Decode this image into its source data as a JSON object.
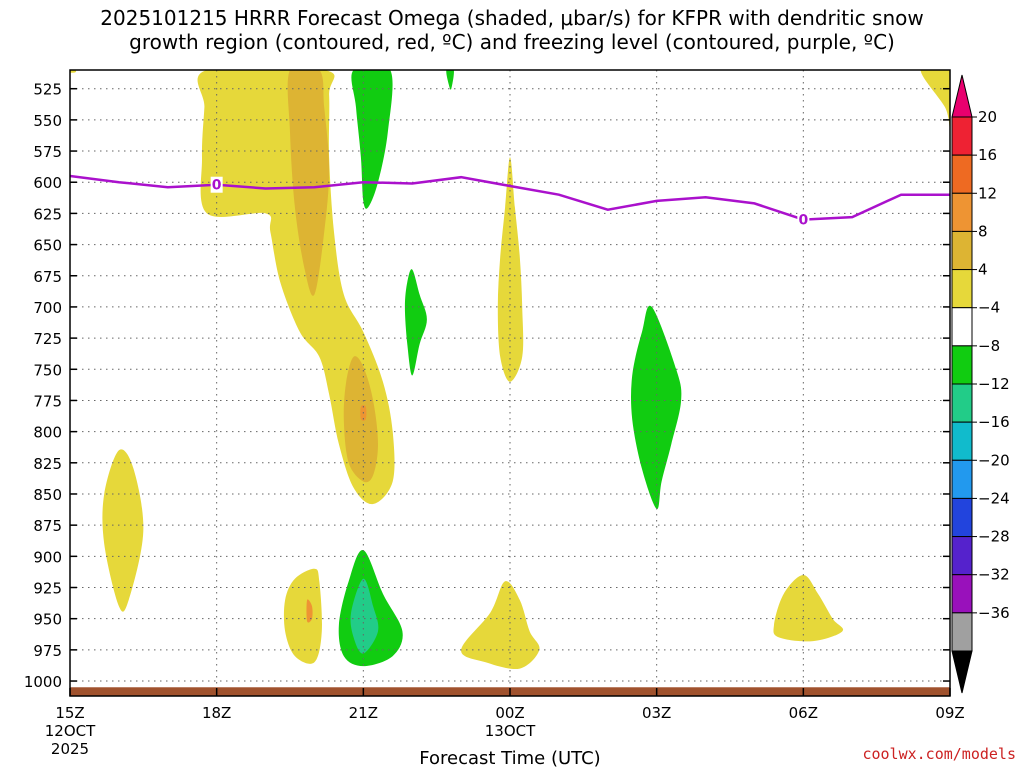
{
  "title": {
    "line1": "2025101215 HRRR Forecast Omega (shaded, μbar/s) for KFPR with dendritic snow",
    "line2": "growth region (contoured, red, ºC) and freezing level (contoured, purple, ºC)"
  },
  "chart_data": {
    "type": "time-height cross section",
    "xlabel": "Forecast Time (UTC)",
    "credit": "coolwx.com/models",
    "x_ticks": [
      {
        "hour": 0,
        "label": "15Z",
        "sub1": "12OCT",
        "sub2": "2025"
      },
      {
        "hour": 3,
        "label": "18Z",
        "sub1": "",
        "sub2": ""
      },
      {
        "hour": 6,
        "label": "21Z",
        "sub1": "",
        "sub2": ""
      },
      {
        "hour": 9,
        "label": "00Z",
        "sub1": "13OCT",
        "sub2": ""
      },
      {
        "hour": 12,
        "label": "03Z",
        "sub1": "",
        "sub2": ""
      },
      {
        "hour": 15,
        "label": "06Z",
        "sub1": "",
        "sub2": ""
      },
      {
        "hour": 18,
        "label": "09Z",
        "sub1": "",
        "sub2": ""
      }
    ],
    "xlim_hours": [
      0,
      18
    ],
    "ylim_mb": [
      1012,
      510
    ],
    "y_ticks": [
      525,
      550,
      575,
      600,
      625,
      650,
      675,
      700,
      725,
      750,
      775,
      800,
      825,
      850,
      875,
      900,
      925,
      950,
      975,
      1000
    ],
    "surface_pressure_mb": 1005,
    "surface_color": "#a0522d",
    "colorbar": {
      "labels": [
        "20",
        "16",
        "12",
        "8",
        "4",
        "−4",
        "−8",
        "−12",
        "−16",
        "−20",
        "−24",
        "−28",
        "−32",
        "−36"
      ],
      "top_arrow_color": "#e8006e",
      "bottom_arrow_color": "#000000",
      "bins": [
        {
          "color": "#ee2233"
        },
        {
          "color": "#ee6a22"
        },
        {
          "color": "#ee9433"
        },
        {
          "color": "#ddb433"
        },
        {
          "color": "#e6d83a"
        },
        {
          "color": "#ffffff"
        },
        {
          "color": "#11cc11"
        },
        {
          "color": "#22cc88"
        },
        {
          "color": "#11bbcc"
        },
        {
          "color": "#2299ee"
        },
        {
          "color": "#2244dd"
        },
        {
          "color": "#5522cc"
        },
        {
          "color": "#9911bb"
        },
        {
          "color": "#a0a0a0"
        }
      ]
    },
    "shaded_regions": [
      {
        "fill": "#e6d83a",
        "points": [
          [
            -0.1,
            510
          ],
          [
            0.1,
            510
          ],
          [
            0.1,
            512
          ],
          [
            -0.1,
            512
          ]
        ]
      },
      {
        "fill": "#e6d83a",
        "points": [
          [
            2.8,
            510
          ],
          [
            5.2,
            510
          ],
          [
            5.3,
            530
          ],
          [
            5.3,
            580
          ],
          [
            5.4,
            640
          ],
          [
            5.6,
            690
          ],
          [
            6.0,
            720
          ],
          [
            6.4,
            760
          ],
          [
            6.6,
            800
          ],
          [
            6.6,
            840
          ],
          [
            6.2,
            858
          ],
          [
            5.8,
            845
          ],
          [
            5.5,
            810
          ],
          [
            5.3,
            770
          ],
          [
            5.1,
            740
          ],
          [
            4.7,
            720
          ],
          [
            4.3,
            680
          ],
          [
            4.1,
            640
          ],
          [
            4.0,
            625
          ],
          [
            2.8,
            625
          ],
          [
            2.7,
            580
          ],
          [
            2.75,
            540
          ]
        ]
      },
      {
        "fill": "#ddb433",
        "points": [
          [
            4.5,
            510
          ],
          [
            5.1,
            510
          ],
          [
            5.2,
            540
          ],
          [
            5.3,
            590
          ],
          [
            5.2,
            640
          ],
          [
            5.0,
            690
          ],
          [
            4.8,
            670
          ],
          [
            4.6,
            620
          ],
          [
            4.5,
            560
          ]
        ]
      },
      {
        "fill": "#ddb433",
        "points": [
          [
            5.8,
            740
          ],
          [
            6.0,
            748
          ],
          [
            6.2,
            775
          ],
          [
            6.3,
            810
          ],
          [
            6.2,
            835
          ],
          [
            6.0,
            840
          ],
          [
            5.7,
            825
          ],
          [
            5.6,
            790
          ],
          [
            5.65,
            760
          ]
        ]
      },
      {
        "fill": "#ee9433",
        "points": [
          [
            5.95,
            780
          ],
          [
            6.05,
            780
          ],
          [
            6.05,
            790
          ],
          [
            5.95,
            790
          ]
        ]
      },
      {
        "fill": "#e6d83a",
        "points": [
          [
            1.0,
            815
          ],
          [
            1.3,
            830
          ],
          [
            1.5,
            880
          ],
          [
            1.2,
            935
          ],
          [
            1.0,
            940
          ],
          [
            0.7,
            890
          ],
          [
            0.7,
            850
          ]
        ]
      },
      {
        "fill": "#e6d83a",
        "points": [
          [
            5.0,
            910
          ],
          [
            5.1,
            920
          ],
          [
            5.15,
            960
          ],
          [
            5.0,
            985
          ],
          [
            4.6,
            980
          ],
          [
            4.4,
            960
          ],
          [
            4.4,
            935
          ],
          [
            4.6,
            918
          ]
        ]
      },
      {
        "fill": "#ee9433",
        "points": [
          [
            4.85,
            935
          ],
          [
            4.95,
            940
          ],
          [
            4.95,
            950
          ],
          [
            4.85,
            952
          ]
        ]
      },
      {
        "fill": "#e6d83a",
        "points": [
          [
            9.0,
            580
          ],
          [
            9.1,
            620
          ],
          [
            9.2,
            660
          ],
          [
            9.25,
            700
          ],
          [
            9.25,
            740
          ],
          [
            9.0,
            760
          ],
          [
            8.8,
            740
          ],
          [
            8.75,
            700
          ],
          [
            8.8,
            660
          ],
          [
            8.9,
            620
          ]
        ]
      },
      {
        "fill": "#e6d83a",
        "points": [
          [
            8.9,
            920
          ],
          [
            9.2,
            935
          ],
          [
            9.4,
            960
          ],
          [
            9.6,
            975
          ],
          [
            9.2,
            990
          ],
          [
            8.5,
            985
          ],
          [
            8.0,
            975
          ],
          [
            8.6,
            945
          ]
        ]
      },
      {
        "fill": "#e6d83a",
        "points": [
          [
            15.0,
            915
          ],
          [
            15.3,
            930
          ],
          [
            15.6,
            950
          ],
          [
            15.8,
            960
          ],
          [
            15.2,
            968
          ],
          [
            14.5,
            965
          ],
          [
            14.4,
            955
          ],
          [
            14.6,
            930
          ]
        ]
      },
      {
        "fill": "#e6d83a",
        "points": [
          [
            17.4,
            510
          ],
          [
            18.0,
            510
          ],
          [
            18.0,
            555
          ],
          [
            17.9,
            540
          ]
        ]
      },
      {
        "fill": "#11cc11",
        "points": [
          [
            5.8,
            510
          ],
          [
            6.55,
            510
          ],
          [
            6.5,
            560
          ],
          [
            6.3,
            600
          ],
          [
            6.1,
            620
          ],
          [
            6.0,
            615
          ],
          [
            5.95,
            580
          ],
          [
            5.85,
            540
          ]
        ]
      },
      {
        "fill": "#11cc11",
        "points": [
          [
            7.7,
            510
          ],
          [
            7.85,
            510
          ],
          [
            7.8,
            525
          ],
          [
            7.75,
            522
          ]
        ]
      },
      {
        "fill": "#11cc11",
        "points": [
          [
            7.0,
            670
          ],
          [
            7.15,
            690
          ],
          [
            7.3,
            710
          ],
          [
            7.15,
            730
          ],
          [
            7.0,
            755
          ],
          [
            6.9,
            730
          ],
          [
            6.85,
            700
          ],
          [
            6.9,
            680
          ]
        ]
      },
      {
        "fill": "#11cc11",
        "points": [
          [
            11.9,
            700
          ],
          [
            12.4,
            750
          ],
          [
            12.5,
            775
          ],
          [
            12.3,
            810
          ],
          [
            12.1,
            840
          ],
          [
            12.0,
            862
          ],
          [
            11.7,
            830
          ],
          [
            11.5,
            790
          ],
          [
            11.5,
            755
          ],
          [
            11.7,
            720
          ]
        ]
      },
      {
        "fill": "#11cc11",
        "points": [
          [
            6.0,
            895
          ],
          [
            6.4,
            930
          ],
          [
            6.8,
            960
          ],
          [
            6.6,
            980
          ],
          [
            6.0,
            988
          ],
          [
            5.6,
            980
          ],
          [
            5.5,
            955
          ],
          [
            5.7,
            920
          ]
        ]
      },
      {
        "fill": "#22cc88",
        "points": [
          [
            6.0,
            918
          ],
          [
            6.2,
            940
          ],
          [
            6.3,
            960
          ],
          [
            6.0,
            978
          ],
          [
            5.8,
            965
          ],
          [
            5.75,
            945
          ]
        ]
      }
    ],
    "freezing_level": {
      "label": "0",
      "color": "#aa11cc",
      "points": [
        [
          0,
          595
        ],
        [
          1,
          600
        ],
        [
          2,
          604
        ],
        [
          3,
          602
        ],
        [
          4,
          605
        ],
        [
          5,
          604
        ],
        [
          6,
          600
        ],
        [
          7,
          601
        ],
        [
          8,
          596
        ],
        [
          9,
          603
        ],
        [
          10,
          610
        ],
        [
          11,
          622
        ],
        [
          12,
          615
        ],
        [
          13,
          612
        ],
        [
          14,
          617
        ],
        [
          15,
          630
        ],
        [
          16,
          628
        ],
        [
          17,
          610
        ],
        [
          18,
          610
        ]
      ],
      "label_positions": [
        [
          3.0,
          602
        ],
        [
          15.0,
          630
        ]
      ]
    }
  }
}
